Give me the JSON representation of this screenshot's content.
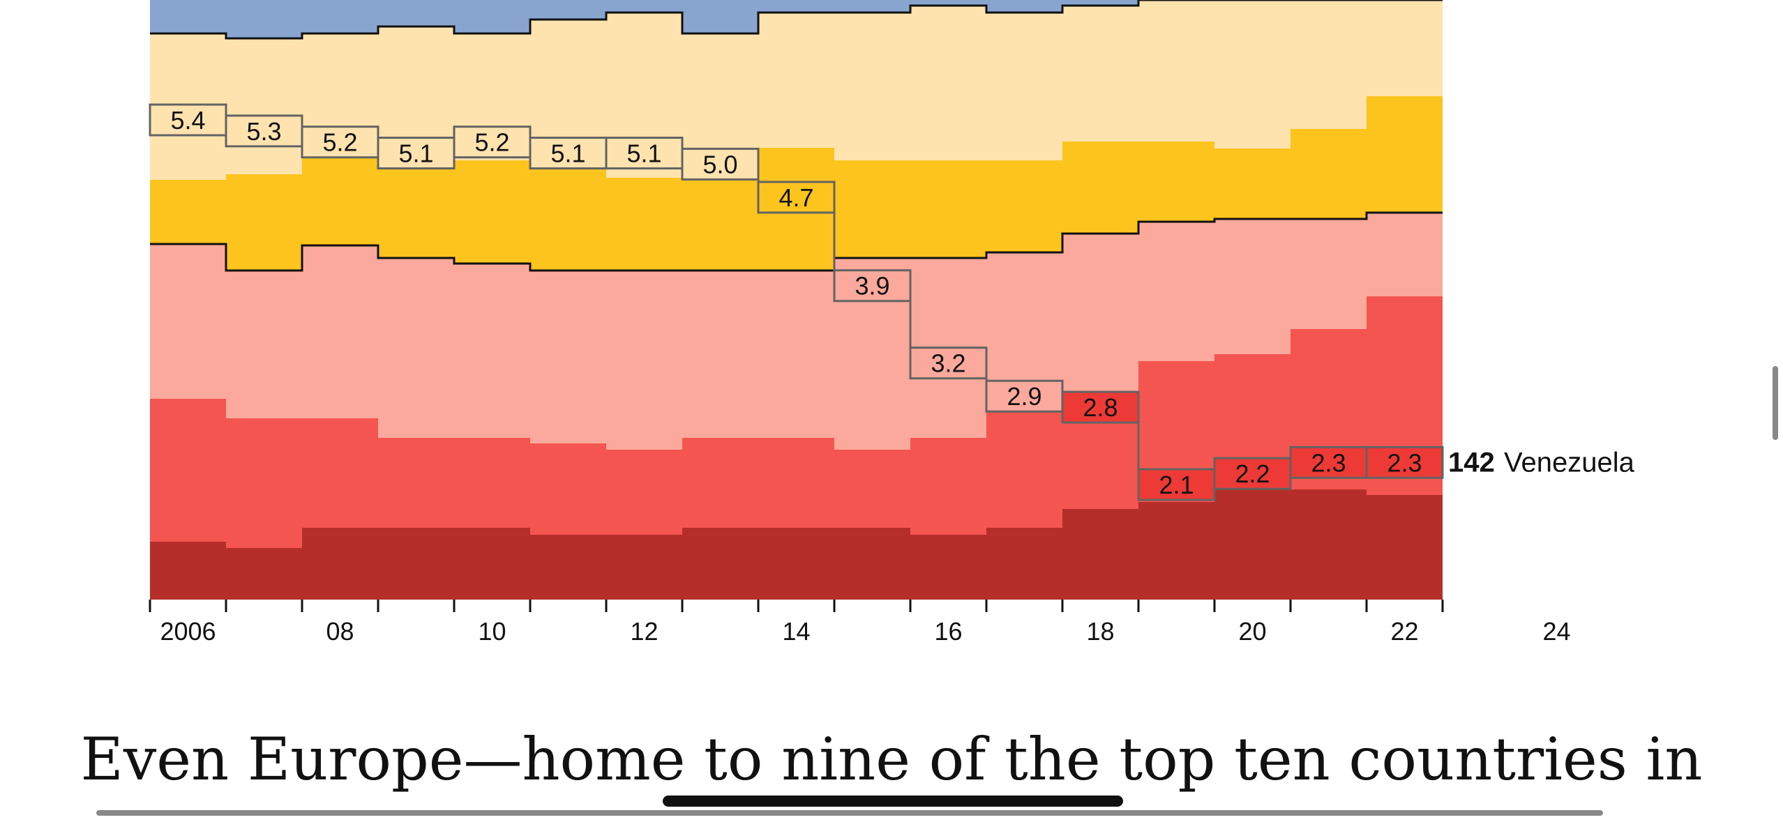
{
  "chart_data": {
    "type": "area",
    "x": [
      "2006",
      "2007",
      "2008",
      "2009",
      "2010",
      "2011",
      "2012",
      "2013",
      "2014",
      "2015",
      "2016",
      "2017",
      "2018",
      "2019",
      "2020",
      "2021",
      "2022",
      "2023",
      "2024"
    ],
    "tick_labels": [
      "2006",
      "08",
      "10",
      "12",
      "14",
      "16",
      "18",
      "20",
      "22",
      "24"
    ],
    "tick_years": [
      2006,
      2008,
      2010,
      2012,
      2014,
      2016,
      2018,
      2020,
      2022,
      2024
    ],
    "highlight": {
      "name": "Venezuela",
      "rank_label": "142",
      "values": [
        5.4,
        5.3,
        5.2,
        5.1,
        5.2,
        5.1,
        5.1,
        5.0,
        4.7,
        3.9,
        3.2,
        2.9,
        2.8,
        2.1,
        2.2,
        2.3,
        2.3
      ],
      "value_labels": [
        "5.4",
        "5.3",
        "5.2",
        "5.1",
        "5.2",
        "5.1",
        "5.1",
        "5.0",
        "4.7",
        "3.9",
        "3.2",
        "2.9",
        "2.8",
        "2.1",
        "2.2",
        "2.3",
        "2.3"
      ]
    },
    "colors": {
      "band_blue": "#87A5CF",
      "band_light_yellow": "#FFE3AE",
      "band_yellow": "#FEC41E",
      "band_pink": "#FAA99C",
      "band_red": "#F45550",
      "band_dark_red": "#B52E29",
      "highlight_red": "#EE3A36",
      "outline": "#636363",
      "boundary": "#111111"
    }
  },
  "caption": {
    "text": "Even Europe—home to nine of the top ten countries in"
  }
}
